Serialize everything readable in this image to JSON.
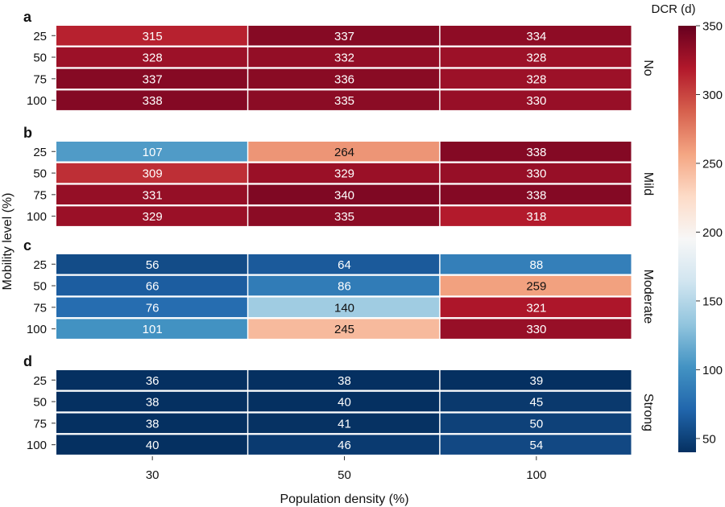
{
  "chart_data": {
    "type": "heatmap",
    "xlabel": "Population density (%)",
    "ylabel": "Mobility level (%)",
    "x_categories": [
      "30",
      "50",
      "100"
    ],
    "y_categories": [
      "25",
      "50",
      "75",
      "100"
    ],
    "panels": [
      {
        "letter": "a",
        "name": "No",
        "values": [
          [
            315,
            337,
            334
          ],
          [
            328,
            332,
            328
          ],
          [
            337,
            336,
            328
          ],
          [
            338,
            335,
            330
          ]
        ]
      },
      {
        "letter": "b",
        "name": "Mild",
        "values": [
          [
            107,
            264,
            338
          ],
          [
            309,
            329,
            330
          ],
          [
            331,
            340,
            338
          ],
          [
            329,
            335,
            318
          ]
        ]
      },
      {
        "letter": "c",
        "name": "Moderate",
        "values": [
          [
            56,
            64,
            88
          ],
          [
            66,
            86,
            259
          ],
          [
            76,
            140,
            321
          ],
          [
            101,
            245,
            330
          ]
        ]
      },
      {
        "letter": "d",
        "name": "Strong",
        "values": [
          [
            36,
            38,
            39
          ],
          [
            38,
            40,
            45
          ],
          [
            38,
            41,
            50
          ],
          [
            40,
            46,
            54
          ]
        ]
      }
    ],
    "colorbar": {
      "title": "DCR (d)",
      "min": 40,
      "max": 350,
      "ticks": [
        50,
        100,
        150,
        200,
        250,
        300,
        350
      ],
      "colormap": "RdBu_r"
    },
    "grid": false,
    "legend": "right"
  }
}
